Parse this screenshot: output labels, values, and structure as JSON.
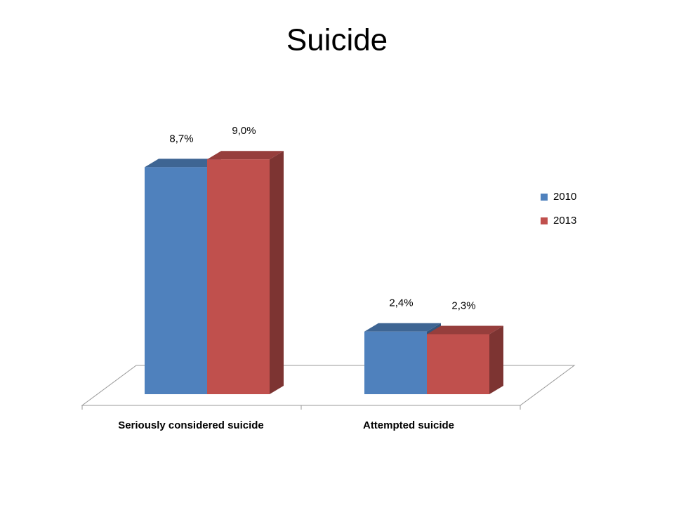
{
  "chart_data": {
    "type": "bar3d",
    "title": "Suicide",
    "categories": [
      "Seriously considered suicide",
      "Attempted suicide"
    ],
    "series": [
      {
        "name": "2010",
        "color": "#4f81bd",
        "values": [
          8.7,
          2.4
        ],
        "value_labels": [
          "8,7%",
          "2,4%"
        ]
      },
      {
        "name": "2013",
        "color": "#c0504d",
        "values": [
          9.0,
          2.3
        ],
        "value_labels": [
          "9,0%",
          "2,3%"
        ]
      }
    ],
    "legend": "right"
  }
}
